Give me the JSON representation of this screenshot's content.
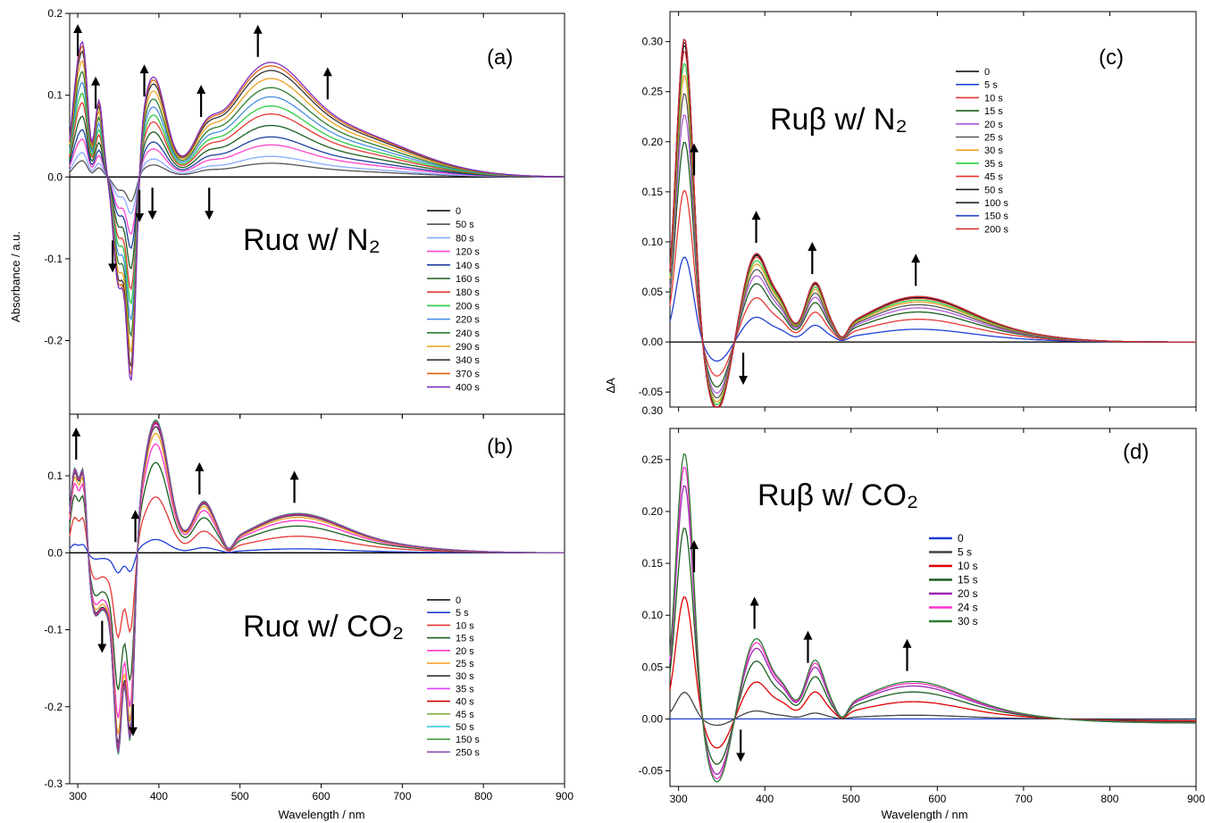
{
  "figure": {
    "ylabel_left": "Absorbance / a.u.",
    "ylabel_right": "ΔA",
    "xlabel_left": "Wavelength / nm",
    "xlabel_right": "Wavelength / nm"
  },
  "chart_data": [
    {
      "id": "a",
      "type": "line",
      "panel_label": "(a)",
      "annotation": "Ruα w/ N₂",
      "xlabel": "",
      "ylabel": "Absorbance / a.u.",
      "xlim": [
        290,
        900
      ],
      "ylim": [
        -0.29,
        0.2
      ],
      "x_ticks": [
        300,
        400,
        500,
        600,
        700,
        800,
        900
      ],
      "y_ticks": [
        -0.3,
        -0.2,
        -0.1,
        0.0,
        0.1,
        0.2
      ],
      "y_tick_labels": [
        "-0.3",
        "-0.2",
        "-0.1",
        "0.0",
        "0.1",
        "0.2"
      ],
      "legend_position": "right-middle",
      "features": {
        "peaks": [
          [
            300,
            1.0
          ],
          [
            318,
            0.95
          ],
          [
            395,
            1.0
          ],
          [
            460,
            0.5
          ],
          [
            520,
            0.9
          ],
          [
            560,
            0.6
          ]
        ],
        "dips": [
          [
            350,
            0.9
          ],
          [
            365,
            1.0
          ]
        ]
      },
      "arrows": [
        {
          "x": 300,
          "dir": "up"
        },
        {
          "x": 322,
          "dir": "up"
        },
        {
          "x": 382,
          "dir": "up"
        },
        {
          "x": 392,
          "dir": "down"
        },
        {
          "x": 452,
          "dir": "up"
        },
        {
          "x": 462,
          "dir": "down"
        },
        {
          "x": 522,
          "dir": "up"
        },
        {
          "x": 608,
          "dir": "up"
        },
        {
          "x": 343,
          "dir": "down"
        },
        {
          "x": 376,
          "dir": "down"
        }
      ],
      "series": [
        {
          "name": "0",
          "color": "#000000",
          "amp": 0.0
        },
        {
          "name": "50 s",
          "color": "#555555",
          "amp": 0.12
        },
        {
          "name": "80 s",
          "color": "#88aaff",
          "amp": 0.18
        },
        {
          "name": "120 s",
          "color": "#ff44cc",
          "amp": 0.28
        },
        {
          "name": "140 s",
          "color": "#1e3fa0",
          "amp": 0.35
        },
        {
          "name": "160 s",
          "color": "#1b5e20",
          "amp": 0.45
        },
        {
          "name": "180 s",
          "color": "#e53935",
          "amp": 0.55
        },
        {
          "name": "200 s",
          "color": "#2ecc40",
          "amp": 0.62
        },
        {
          "name": "220 s",
          "color": "#4a90e2",
          "amp": 0.7
        },
        {
          "name": "240 s",
          "color": "#2e7d32",
          "amp": 0.78
        },
        {
          "name": "290 s",
          "color": "#f0a020",
          "amp": 0.86
        },
        {
          "name": "340 s",
          "color": "#333333",
          "amp": 0.93
        },
        {
          "name": "370 s",
          "color": "#e06010",
          "amp": 0.97
        },
        {
          "name": "400 s",
          "color": "#7b2fbe",
          "amp": 1.0
        }
      ]
    },
    {
      "id": "b",
      "type": "line",
      "panel_label": "(b)",
      "annotation": "Ruα w/ CO₂",
      "xlabel": "Wavelength / nm",
      "ylabel": "",
      "xlim": [
        290,
        900
      ],
      "ylim": [
        -0.3,
        0.18
      ],
      "x_ticks": [
        300,
        400,
        500,
        600,
        700,
        800,
        900
      ],
      "y_ticks": [
        -0.3,
        -0.2,
        -0.1,
        0.0,
        0.1
      ],
      "y_tick_labels": [
        "-0.3",
        "-0.2",
        "-0.1",
        "0.0",
        "0.1"
      ],
      "legend_position": "right-middle",
      "features": {
        "peaks": [
          [
            300,
            0.11
          ],
          [
            395,
            0.17
          ],
          [
            455,
            0.063
          ],
          [
            565,
            0.043
          ]
        ],
        "dips": [
          [
            350,
            0.2
          ],
          [
            366,
            0.25
          ]
        ]
      },
      "arrows": [
        {
          "x": 298,
          "dir": "up"
        },
        {
          "x": 371,
          "dir": "up"
        },
        {
          "x": 450,
          "dir": "up"
        },
        {
          "x": 567,
          "dir": "up"
        },
        {
          "x": 330,
          "dir": "down"
        },
        {
          "x": 368,
          "dir": "down"
        }
      ],
      "series": [
        {
          "name": "0",
          "color": "#000000",
          "amp": 0.0
        },
        {
          "name": "5 s",
          "color": "#1f3fd6",
          "amp": 0.1
        },
        {
          "name": "10 s",
          "color": "#e53935",
          "amp": 0.42
        },
        {
          "name": "15 s",
          "color": "#1b5e20",
          "amp": 0.68
        },
        {
          "name": "20 s",
          "color": "#ff33cc",
          "amp": 0.82
        },
        {
          "name": "25 s",
          "color": "#f0a020",
          "amp": 0.9
        },
        {
          "name": "30 s",
          "color": "#333333",
          "amp": 0.95
        },
        {
          "name": "35 s",
          "color": "#e040fb",
          "amp": 0.97
        },
        {
          "name": "40 s",
          "color": "#d50000",
          "amp": 0.98
        },
        {
          "name": "45 s",
          "color": "#7cb342",
          "amp": 0.99
        },
        {
          "name": "50 s",
          "color": "#26c6da",
          "amp": 1.0
        },
        {
          "name": "150 s",
          "color": "#43a047",
          "amp": 1.0
        },
        {
          "name": "250 s",
          "color": "#8e44ad",
          "amp": 0.99
        }
      ]
    },
    {
      "id": "c",
      "type": "line",
      "panel_label": "(c)",
      "annotation": "Ruβ w/ N₂",
      "xlabel": "",
      "ylabel": "ΔA",
      "xlim": [
        290,
        900
      ],
      "ylim": [
        -0.065,
        0.33
      ],
      "x_ticks": [
        300,
        400,
        500,
        600,
        700,
        800,
        900
      ],
      "y_ticks": [
        -0.05,
        0.0,
        0.05,
        0.1,
        0.15,
        0.2,
        0.25,
        0.3
      ],
      "y_tick_labels": [
        "-0.05",
        "0.00",
        "0.05",
        "0.10",
        "0.15",
        "0.20",
        "0.25",
        "0.30"
      ],
      "legend_position": "top-left",
      "features": {
        "peaks": [
          [
            307,
            0.3
          ],
          [
            390,
            0.09
          ],
          [
            458,
            0.056
          ],
          [
            575,
            0.045
          ]
        ],
        "dips": [
          [
            345,
            0.056
          ]
        ]
      },
      "arrows": [
        {
          "x": 318,
          "dir": "up"
        },
        {
          "x": 390,
          "dir": "up"
        },
        {
          "x": 455,
          "dir": "up"
        },
        {
          "x": 575,
          "dir": "up"
        },
        {
          "x": 375,
          "dir": "down"
        }
      ],
      "series": [
        {
          "name": "0",
          "color": "#000000",
          "amp": 0.0
        },
        {
          "name": "5 s",
          "color": "#1f3fd6",
          "amp": 0.28
        },
        {
          "name": "10 s",
          "color": "#e53935",
          "amp": 0.5
        },
        {
          "name": "15 s",
          "color": "#1b5e20",
          "amp": 0.66
        },
        {
          "name": "20 s",
          "color": "#b05ad8",
          "amp": 0.75
        },
        {
          "name": "25 s",
          "color": "#555555",
          "amp": 0.82
        },
        {
          "name": "30 s",
          "color": "#f0a020",
          "amp": 0.88
        },
        {
          "name": "35 s",
          "color": "#2ecc40",
          "amp": 0.92
        },
        {
          "name": "45 s",
          "color": "#e53935",
          "amp": 0.96
        },
        {
          "name": "50 s",
          "color": "#222222",
          "amp": 0.98
        },
        {
          "name": "100 s",
          "color": "#111111",
          "amp": 0.99
        },
        {
          "name": "150 s",
          "color": "#2040c0",
          "amp": 1.0
        },
        {
          "name": "200 s",
          "color": "#d32f2f",
          "amp": 1.0
        }
      ]
    },
    {
      "id": "d",
      "type": "line",
      "panel_label": "(d)",
      "annotation": "Ruβ w/ CO₂",
      "xlabel": "Wavelength / nm",
      "ylabel": "",
      "xlim": [
        290,
        900
      ],
      "ylim": [
        -0.065,
        0.28
      ],
      "x_ticks": [
        300,
        400,
        500,
        600,
        700,
        800,
        900
      ],
      "y_ticks": [
        -0.05,
        0.0,
        0.05,
        0.1,
        0.15,
        0.2,
        0.25
      ],
      "y_tick_labels": [
        "-0.05",
        "0.00",
        "0.05",
        "0.10",
        "0.15",
        "0.20",
        "0.25"
      ],
      "top_tick_label": "0.30",
      "legend_position": "center",
      "features": {
        "peaks": [
          [
            307,
            0.253
          ],
          [
            390,
            0.081
          ],
          [
            458,
            0.055
          ],
          [
            570,
            0.038
          ]
        ],
        "dips": [
          [
            345,
            0.052
          ]
        ]
      },
      "arrows": [
        {
          "x": 318,
          "dir": "up"
        },
        {
          "x": 388,
          "dir": "up"
        },
        {
          "x": 450,
          "dir": "up"
        },
        {
          "x": 565,
          "dir": "up"
        },
        {
          "x": 372,
          "dir": "down"
        }
      ],
      "series": [
        {
          "name": "0",
          "color": "#1f3fd6",
          "amp": 0.0
        },
        {
          "name": "5 s",
          "color": "#444444",
          "amp": 0.1
        },
        {
          "name": "10 s",
          "color": "#e00000",
          "amp": 0.46
        },
        {
          "name": "15 s",
          "color": "#1b5e20",
          "amp": 0.72
        },
        {
          "name": "20 s",
          "color": "#9c27b0",
          "amp": 0.88
        },
        {
          "name": "24 s",
          "color": "#ff33cc",
          "amp": 0.95
        },
        {
          "name": "30 s",
          "color": "#2e7d32",
          "amp": 1.0
        }
      ]
    }
  ]
}
